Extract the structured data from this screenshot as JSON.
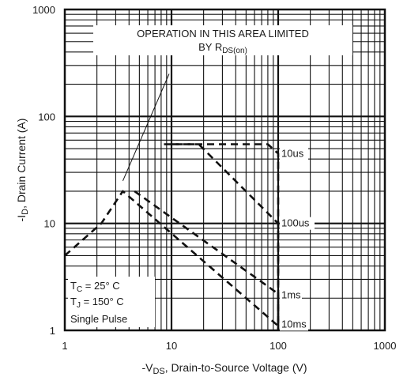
{
  "chart_data": {
    "type": "line",
    "title": "",
    "xlabel": "-V",
    "xlabel_sub": "DS",
    "xlabel_rest": ", Drain-to-Source Voltage (V)",
    "ylabel": "-I",
    "ylabel_sub": "D",
    "ylabel_rest": ", Drain Current (A)",
    "xscale": "log",
    "yscale": "log",
    "xlim": [
      1,
      1000
    ],
    "ylim": [
      1,
      1000
    ],
    "grid": true,
    "x_tick_labels": [
      "1",
      "10",
      "100",
      "1000"
    ],
    "y_tick_labels": [
      "1",
      "10",
      "100",
      "1000"
    ],
    "annotation": {
      "line1": "OPERATION IN THIS AREA LIMITED",
      "line2_prefix": "BY R",
      "line2_sub": "DS(on)"
    },
    "conditions": {
      "tc_prefix": "T",
      "tc_sub": "C",
      "tc_value": " = 25° C",
      "tj_prefix": "T",
      "tj_sub": "J",
      "tj_value": " = 150° C",
      "pulse": "Single Pulse"
    },
    "series": [
      {
        "name": "10us",
        "points": [
          [
            10,
            55
          ],
          [
            80,
            55
          ],
          [
            100,
            45
          ],
          [
            100,
            1
          ]
        ]
      },
      {
        "name": "100us",
        "points": [
          [
            8.5,
            55
          ],
          [
            18,
            55
          ],
          [
            100,
            10
          ],
          [
            100,
            1
          ]
        ]
      },
      {
        "name": "1ms",
        "points": [
          [
            4.5,
            20
          ],
          [
            100,
            2.2
          ],
          [
            100,
            1
          ]
        ]
      },
      {
        "name": "10ms",
        "points": [
          [
            1,
            5
          ],
          [
            2.2,
            10
          ],
          [
            3.5,
            20
          ],
          [
            100,
            1.1
          ]
        ]
      }
    ],
    "rds_on_arrow": {
      "from": [
        3.5,
        25
      ],
      "to": [
        9.5,
        250
      ]
    }
  }
}
